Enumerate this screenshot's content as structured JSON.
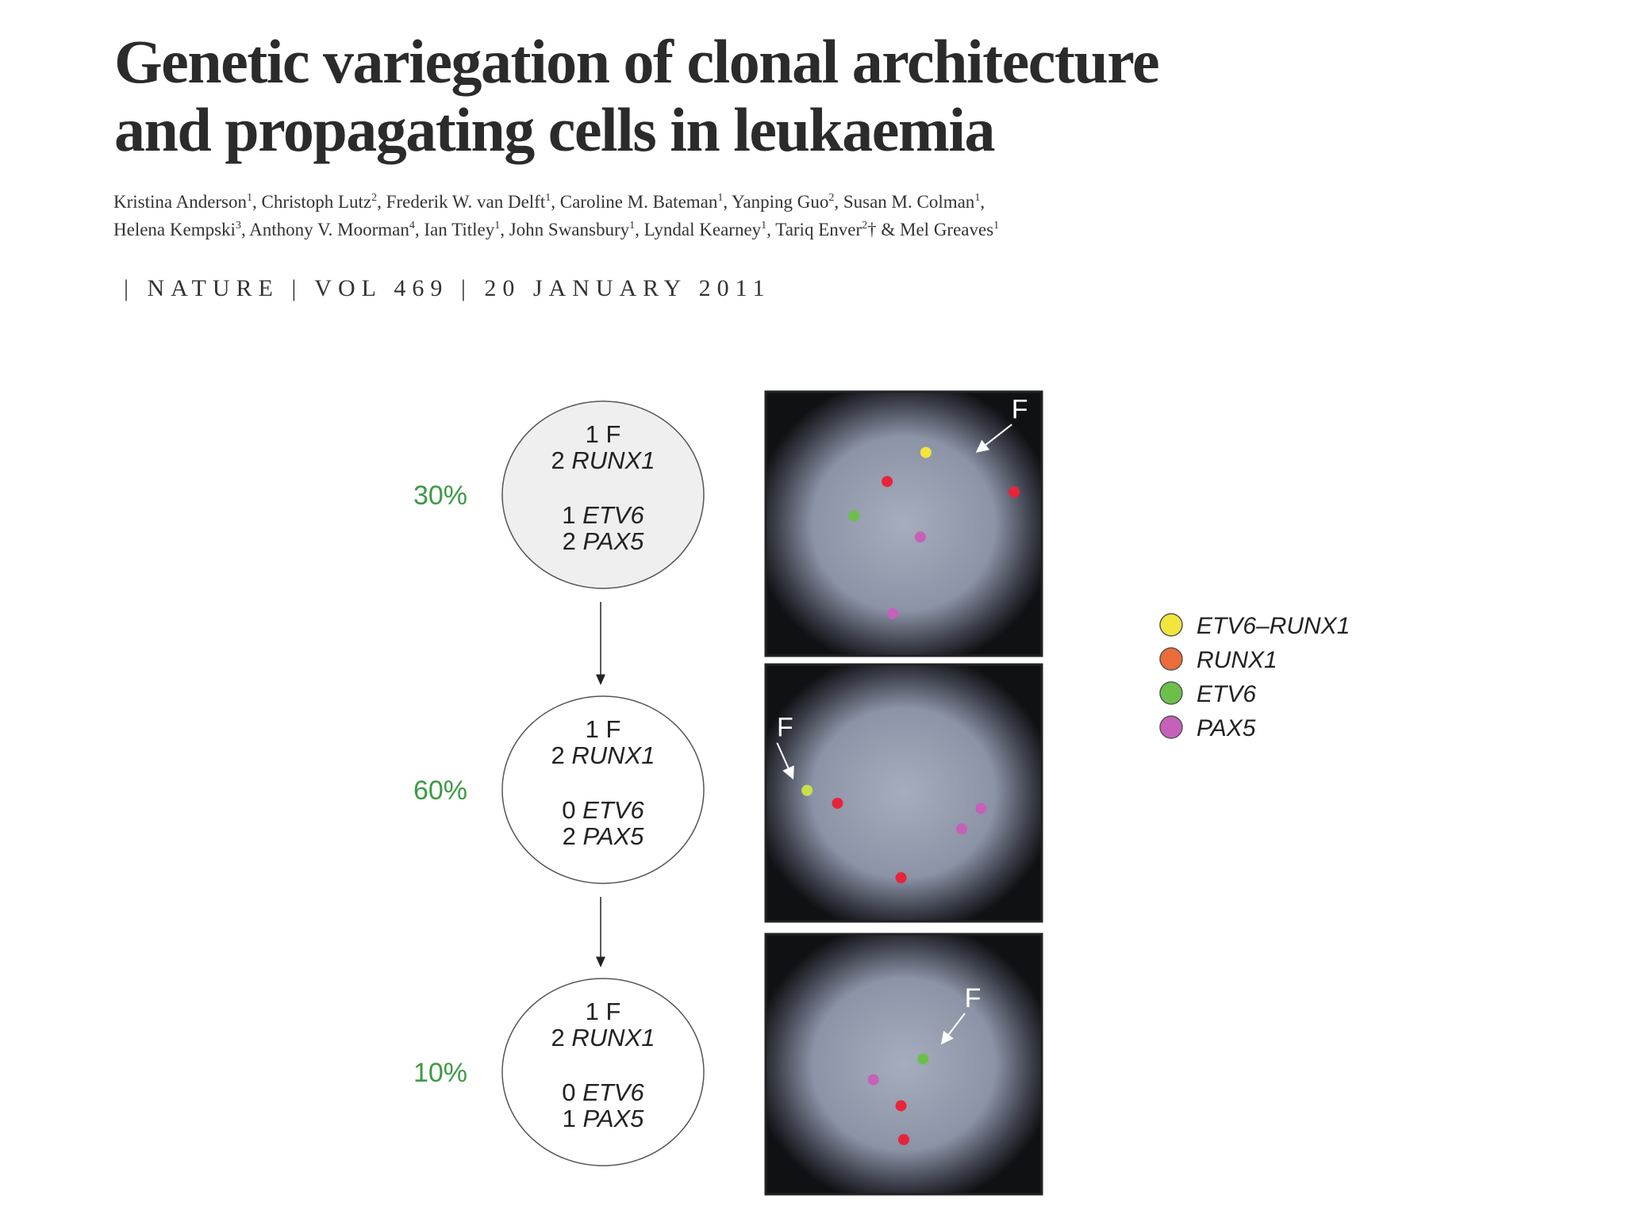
{
  "header": {
    "title": [
      "Genetic variegation of clonal architecture",
      "and propagating cells in leukaemia"
    ],
    "author_lines": [
      [
        {
          "name": "Kristina Anderson",
          "sup": "1",
          "after": ", "
        },
        {
          "name": "Christoph Lutz",
          "sup": "2",
          "after": ", "
        },
        {
          "name": "Frederik W. van Delft",
          "sup": "1",
          "after": ", "
        },
        {
          "name": "Caroline M. Bateman",
          "sup": "1",
          "after": ", "
        },
        {
          "name": "Yanping Guo",
          "sup": "2",
          "after": ", "
        },
        {
          "name": "Susan M. Colman",
          "sup": "1",
          "after": ","
        }
      ],
      [
        {
          "name": "Helena Kempski",
          "sup": "3",
          "after": ", "
        },
        {
          "name": "Anthony V. Moorman",
          "sup": "4",
          "after": ", "
        },
        {
          "name": "Ian Titley",
          "sup": "1",
          "after": ", "
        },
        {
          "name": "John Swansbury",
          "sup": "1",
          "after": ", "
        },
        {
          "name": "Lyndal Kearney",
          "sup": "1",
          "after": ", "
        },
        {
          "name": "Tariq Enver",
          "sup": "2",
          "after": "† & "
        },
        {
          "name": "Mel Greaves",
          "sup": "1"
        }
      ]
    ],
    "journal": "| NATURE | VOL 469 | 20 JANUARY 2011"
  },
  "figure": {
    "clones": [
      {
        "percent": "30%",
        "rows": [
          {
            "n": "1",
            "gene": "F",
            "italic": false
          },
          {
            "n": "2",
            "gene": "RUNX1",
            "italic": true
          },
          {
            "n": "1",
            "gene": "ETV6",
            "italic": true
          },
          {
            "n": "2",
            "gene": "PAX5",
            "italic": true
          }
        ],
        "image_label": "F"
      },
      {
        "percent": "60%",
        "rows": [
          {
            "n": "1",
            "gene": "F",
            "italic": false
          },
          {
            "n": "2",
            "gene": "RUNX1",
            "italic": true
          },
          {
            "n": "0",
            "gene": "ETV6",
            "italic": true
          },
          {
            "n": "2",
            "gene": "PAX5",
            "italic": true
          }
        ],
        "image_label": "F"
      },
      {
        "percent": "10%",
        "rows": [
          {
            "n": "1",
            "gene": "F",
            "italic": false
          },
          {
            "n": "2",
            "gene": "RUNX1",
            "italic": true
          },
          {
            "n": "0",
            "gene": "ETV6",
            "italic": true
          },
          {
            "n": "1",
            "gene": "PAX5",
            "italic": true
          }
        ],
        "image_label": "F"
      }
    ],
    "percent_color": "#3e9a45",
    "legend": [
      {
        "name": "ETV6–RUNX1",
        "color": "#f2e53c"
      },
      {
        "name": "RUNX1",
        "color": "#ec6b3a"
      },
      {
        "name": "ETV6",
        "color": "#6cc04a"
      },
      {
        "name": "PAX5",
        "color": "#c660b8"
      }
    ]
  }
}
